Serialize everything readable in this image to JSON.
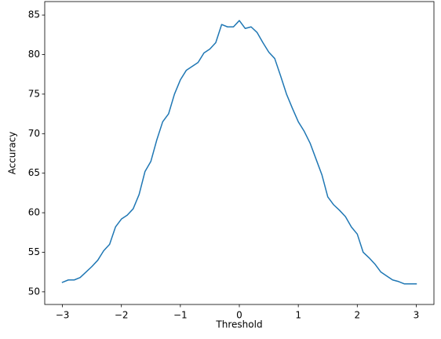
{
  "chart_data": {
    "type": "line",
    "x_label": "Threshold",
    "y_label": "Accuracy",
    "x": [
      -3.0,
      -2.9,
      -2.8,
      -2.7,
      -2.6,
      -2.5,
      -2.4,
      -2.3,
      -2.2,
      -2.1,
      -2.0,
      -1.9,
      -1.8,
      -1.7,
      -1.6,
      -1.5,
      -1.4,
      -1.3,
      -1.2,
      -1.1,
      -1.0,
      -0.9,
      -0.8,
      -0.7,
      -0.6,
      -0.5,
      -0.4,
      -0.3,
      -0.2,
      -0.1,
      0.0,
      0.1,
      0.2,
      0.3,
      0.4,
      0.5,
      0.6,
      0.7,
      0.8,
      0.9,
      1.0,
      1.1,
      1.2,
      1.3,
      1.4,
      1.5,
      1.6,
      1.7,
      1.8,
      1.9,
      2.0,
      2.1,
      2.2,
      2.3,
      2.4,
      2.5,
      2.6,
      2.7,
      2.8,
      2.9,
      3.0
    ],
    "series": [
      {
        "color": "#1f77b4",
        "values": [
          51.2,
          51.5,
          51.5,
          51.8,
          52.5,
          53.2,
          54.0,
          55.2,
          56.0,
          58.2,
          59.2,
          59.7,
          60.5,
          62.3,
          65.2,
          66.5,
          69.2,
          71.5,
          72.5,
          75.0,
          76.8,
          78.0,
          78.5,
          79.0,
          80.2,
          80.7,
          81.5,
          83.8,
          83.5,
          83.5,
          84.3,
          83.3,
          83.5,
          82.8,
          81.5,
          80.3,
          79.5,
          77.3,
          75.0,
          73.2,
          71.5,
          70.3,
          68.8,
          66.8,
          64.8,
          62.0,
          61.0,
          60.3,
          59.5,
          58.2,
          57.3,
          55.0,
          54.3,
          53.5,
          52.5,
          52.0,
          51.5,
          51.3,
          51.0,
          51.0,
          51.0
        ]
      }
    ],
    "xlim": [
      -3.3,
      3.3
    ],
    "ylim": [
      48.4,
      86.7
    ],
    "xticks": [
      {
        "value": -3,
        "label": "−3"
      },
      {
        "value": -2,
        "label": "−2"
      },
      {
        "value": -1,
        "label": "−1"
      },
      0,
      1,
      2,
      3
    ],
    "yticks": [
      50,
      55,
      60,
      65,
      70,
      75,
      80,
      85
    ],
    "grid": false
  }
}
